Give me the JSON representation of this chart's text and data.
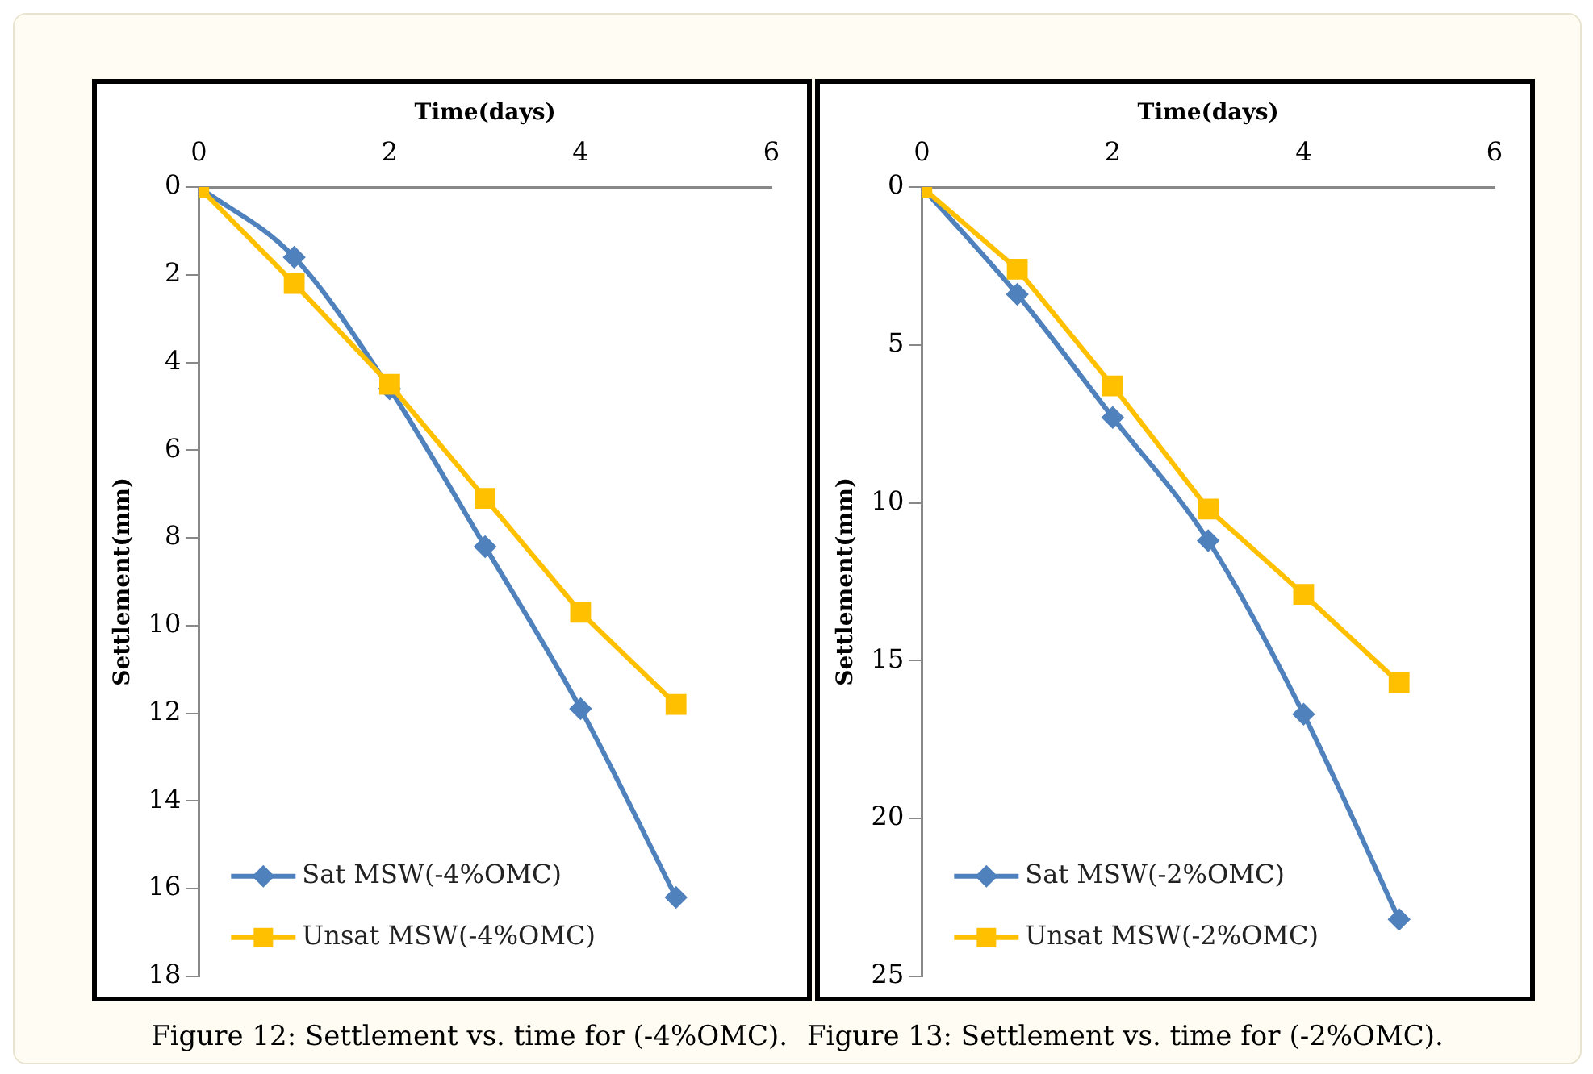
{
  "chart_data": [
    {
      "type": "line",
      "xlabel": "Time(days)",
      "ylabel": "Settlement(mm)",
      "x": [
        0,
        1,
        2,
        3,
        4,
        5
      ],
      "xlim": [
        0,
        6
      ],
      "xticks": [
        0,
        2,
        4,
        6
      ],
      "ylim": [
        18,
        0
      ],
      "yticks": [
        0,
        2,
        4,
        6,
        8,
        10,
        12,
        14,
        16,
        18
      ],
      "grid": false,
      "legend": "bottom left",
      "line_style": "solid",
      "series": [
        {
          "name": "Sat MSW(-4%OMC)",
          "color": "#4f81bd",
          "marker": "diamond",
          "values": [
            0,
            1.6,
            4.6,
            8.2,
            11.9,
            16.2
          ]
        },
        {
          "name": "Unsat MSW(-4%OMC)",
          "color": "#ffc000",
          "marker": "square",
          "values": [
            0,
            2.2,
            4.5,
            7.1,
            9.7,
            11.8
          ]
        }
      ],
      "annotations": [
        "Figure 12: Settlement vs. time for (-4%OMC)."
      ]
    },
    {
      "type": "line",
      "xlabel": "Time(days)",
      "ylabel": "Settlement(mm)",
      "x": [
        0,
        1,
        2,
        3,
        4,
        5
      ],
      "xlim": [
        0,
        6
      ],
      "xticks": [
        0,
        2,
        4,
        6
      ],
      "ylim": [
        25,
        0
      ],
      "yticks": [
        0,
        5,
        10,
        15,
        20,
        25
      ],
      "grid": false,
      "legend": "bottom left",
      "line_style": "solid",
      "series": [
        {
          "name": "Sat MSW(-2%OMC)",
          "color": "#4f81bd",
          "marker": "diamond",
          "values": [
            0,
            3.4,
            7.3,
            11.2,
            16.7,
            23.2
          ]
        },
        {
          "name": "Unsat MSW(-2%OMC)",
          "color": "#ffc000",
          "marker": "square",
          "values": [
            0,
            2.6,
            6.3,
            10.2,
            12.9,
            15.7
          ]
        }
      ],
      "annotations": [
        "Figure 13: Settlement vs. time for (-2%OMC)."
      ]
    }
  ]
}
